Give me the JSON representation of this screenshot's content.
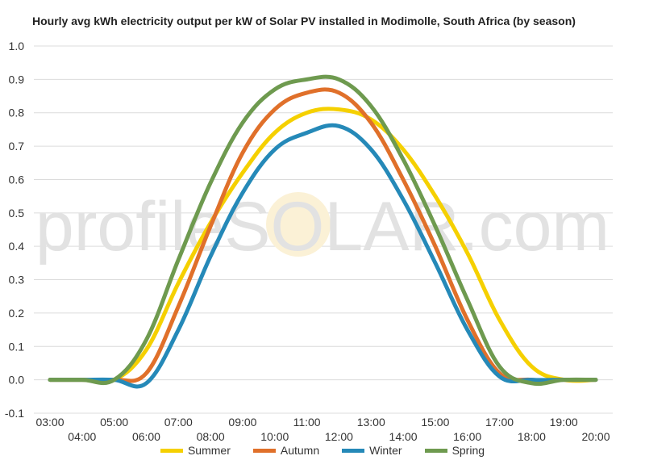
{
  "watermark": "profileSOLAR.com",
  "colors": {
    "Summer": "#f5d000",
    "Autumn": "#e0702a",
    "Winter": "#2589b8",
    "Spring": "#6e9a4f",
    "grid": "#dcdcdc",
    "watermark_text": "#e2e2e2",
    "watermark_sun": "#fbf1d6"
  },
  "chart_data": {
    "type": "line",
    "title": "Hourly avg kWh electricity output per kW of Solar PV installed in Modimolle, South Africa (by season)",
    "xlabel": "",
    "ylabel": "",
    "ylim": [
      -0.1,
      1.0
    ],
    "yticks": [
      "-0.1",
      "0.0",
      "0.1",
      "0.2",
      "0.3",
      "0.4",
      "0.5",
      "0.6",
      "0.7",
      "0.8",
      "0.9",
      "1.0"
    ],
    "xlim": [
      3,
      20
    ],
    "xticks_upper": [
      "03:00",
      "05:00",
      "07:00",
      "09:00",
      "11:00",
      "13:00",
      "15:00",
      "17:00",
      "19:00"
    ],
    "xticks_lower": [
      "04:00",
      "06:00",
      "08:00",
      "10:00",
      "12:00",
      "14:00",
      "16:00",
      "18:00",
      "20:00"
    ],
    "grid": true,
    "legend_position": "bottom",
    "x": [
      "03:00",
      "04:00",
      "05:00",
      "06:00",
      "07:00",
      "08:00",
      "09:00",
      "10:00",
      "11:00",
      "12:00",
      "13:00",
      "14:00",
      "15:00",
      "16:00",
      "17:00",
      "18:00",
      "19:00",
      "20:00"
    ],
    "series": [
      {
        "name": "Summer",
        "values": [
          0,
          0,
          0,
          0.09,
          0.29,
          0.47,
          0.62,
          0.74,
          0.8,
          0.81,
          0.78,
          0.69,
          0.55,
          0.38,
          0.18,
          0.04,
          0,
          0
        ]
      },
      {
        "name": "Autumn",
        "values": [
          0,
          0,
          0,
          0.02,
          0.22,
          0.46,
          0.68,
          0.81,
          0.86,
          0.86,
          0.77,
          0.6,
          0.4,
          0.18,
          0.02,
          0,
          0,
          0
        ]
      },
      {
        "name": "Winter",
        "values": [
          0,
          0,
          0,
          -0.01,
          0.15,
          0.37,
          0.56,
          0.69,
          0.74,
          0.76,
          0.69,
          0.54,
          0.35,
          0.15,
          0.01,
          0,
          0,
          0
        ]
      },
      {
        "name": "Spring",
        "values": [
          0,
          0,
          0,
          0.12,
          0.36,
          0.59,
          0.77,
          0.87,
          0.9,
          0.9,
          0.82,
          0.66,
          0.46,
          0.24,
          0.04,
          -0.01,
          0,
          0
        ]
      }
    ]
  }
}
